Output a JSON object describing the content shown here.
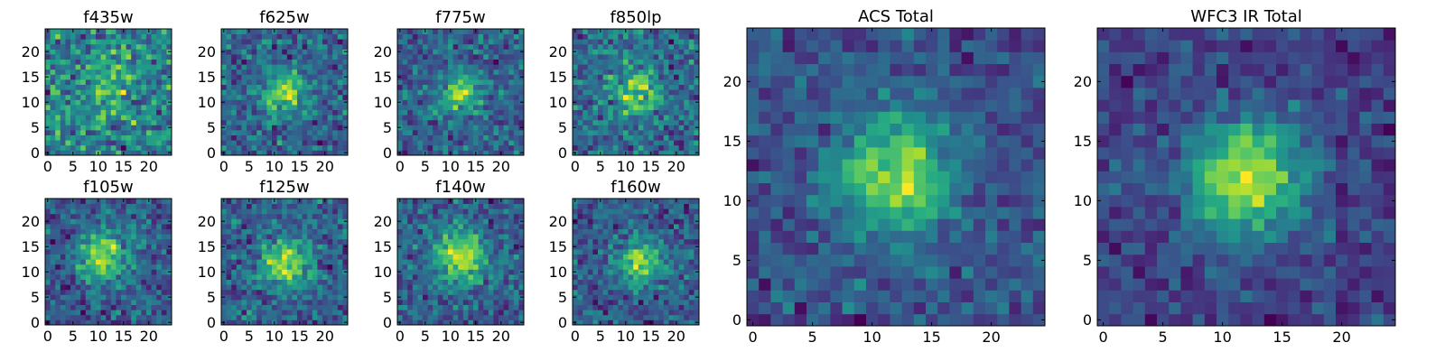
{
  "chart_data": [
    {
      "type": "heatmap",
      "title": "f435w",
      "x_ticks": [
        0,
        5,
        10,
        15,
        20
      ],
      "y_ticks": [
        0,
        5,
        10,
        15,
        20
      ],
      "xlim": [
        -0.5,
        24.5
      ],
      "ylim": [
        -0.5,
        24.5
      ],
      "grid_size": 25,
      "source": {
        "peak": [
          12,
          14
        ],
        "sigma": 3.5,
        "strength": 0.25,
        "noise": 0.42,
        "seed": 11
      }
    },
    {
      "type": "heatmap",
      "title": "f625w",
      "x_ticks": [
        0,
        5,
        10,
        15,
        20
      ],
      "y_ticks": [
        0,
        5,
        10,
        15,
        20
      ],
      "xlim": [
        -0.5,
        24.5
      ],
      "ylim": [
        -0.5,
        24.5
      ],
      "grid_size": 25,
      "source": {
        "peak": [
          12,
          12
        ],
        "sigma": 3.0,
        "strength": 0.48,
        "noise": 0.34,
        "seed": 23
      }
    },
    {
      "type": "heatmap",
      "title": "f775w",
      "x_ticks": [
        0,
        5,
        10,
        15,
        20
      ],
      "y_ticks": [
        0,
        5,
        10,
        15,
        20
      ],
      "xlim": [
        -0.5,
        24.5
      ],
      "ylim": [
        -0.5,
        24.5
      ],
      "grid_size": 25,
      "source": {
        "peak": [
          12,
          12
        ],
        "sigma": 2.8,
        "strength": 0.5,
        "noise": 0.34,
        "seed": 37
      }
    },
    {
      "type": "heatmap",
      "title": "f850lp",
      "x_ticks": [
        0,
        5,
        10,
        15,
        20
      ],
      "y_ticks": [
        0,
        5,
        10,
        15,
        20
      ],
      "xlim": [
        -0.5,
        24.5
      ],
      "ylim": [
        -0.5,
        24.5
      ],
      "grid_size": 25,
      "source": {
        "peak": [
          12,
          12
        ],
        "sigma": 3.0,
        "strength": 0.45,
        "noise": 0.36,
        "seed": 41
      }
    },
    {
      "type": "heatmap",
      "title": "f105w",
      "x_ticks": [
        0,
        5,
        10,
        15,
        20
      ],
      "y_ticks": [
        0,
        5,
        10,
        15,
        20
      ],
      "xlim": [
        -0.5,
        24.5
      ],
      "ylim": [
        -0.5,
        24.5
      ],
      "grid_size": 25,
      "source": {
        "peak": [
          11,
          13
        ],
        "sigma": 3.4,
        "strength": 0.55,
        "noise": 0.3,
        "seed": 53
      }
    },
    {
      "type": "heatmap",
      "title": "f125w",
      "x_ticks": [
        0,
        5,
        10,
        15,
        20
      ],
      "y_ticks": [
        0,
        5,
        10,
        15,
        20
      ],
      "xlim": [
        -0.5,
        24.5
      ],
      "ylim": [
        -0.5,
        24.5
      ],
      "grid_size": 25,
      "source": {
        "peak": [
          12,
          12
        ],
        "sigma": 3.2,
        "strength": 0.55,
        "noise": 0.3,
        "seed": 67
      }
    },
    {
      "type": "heatmap",
      "title": "f140w",
      "x_ticks": [
        0,
        5,
        10,
        15,
        20
      ],
      "y_ticks": [
        0,
        5,
        10,
        15,
        20
      ],
      "xlim": [
        -0.5,
        24.5
      ],
      "ylim": [
        -0.5,
        24.5
      ],
      "grid_size": 25,
      "source": {
        "peak": [
          12,
          13
        ],
        "sigma": 3.6,
        "strength": 0.55,
        "noise": 0.3,
        "seed": 79
      }
    },
    {
      "type": "heatmap",
      "title": "f160w",
      "x_ticks": [
        0,
        5,
        10,
        15,
        20
      ],
      "y_ticks": [
        0,
        5,
        10,
        15,
        20
      ],
      "xlim": [
        -0.5,
        24.5
      ],
      "ylim": [
        -0.5,
        24.5
      ],
      "grid_size": 25,
      "source": {
        "peak": [
          13,
          12
        ],
        "sigma": 3.0,
        "strength": 0.55,
        "noise": 0.32,
        "seed": 83
      }
    },
    {
      "type": "heatmap",
      "title": "ACS Total",
      "x_ticks": [
        0,
        5,
        10,
        15,
        20
      ],
      "y_ticks": [
        0,
        5,
        10,
        15,
        20
      ],
      "xlim": [
        -0.5,
        24.5
      ],
      "ylim": [
        -0.5,
        24.5
      ],
      "grid_size": 25,
      "source": {
        "peak": [
          12,
          12
        ],
        "sigma": 3.3,
        "strength": 0.55,
        "noise": 0.22,
        "seed": 97
      }
    },
    {
      "type": "heatmap",
      "title": "WFC3 IR Total",
      "x_ticks": [
        0,
        5,
        10,
        15,
        20
      ],
      "y_ticks": [
        0,
        5,
        10,
        15,
        20
      ],
      "xlim": [
        -0.5,
        24.5
      ],
      "ylim": [
        -0.5,
        24.5
      ],
      "grid_size": 25,
      "source": {
        "peak": [
          12,
          12
        ],
        "sigma": 3.5,
        "strength": 0.58,
        "noise": 0.18,
        "seed": 101
      }
    }
  ],
  "colormap": "viridis"
}
